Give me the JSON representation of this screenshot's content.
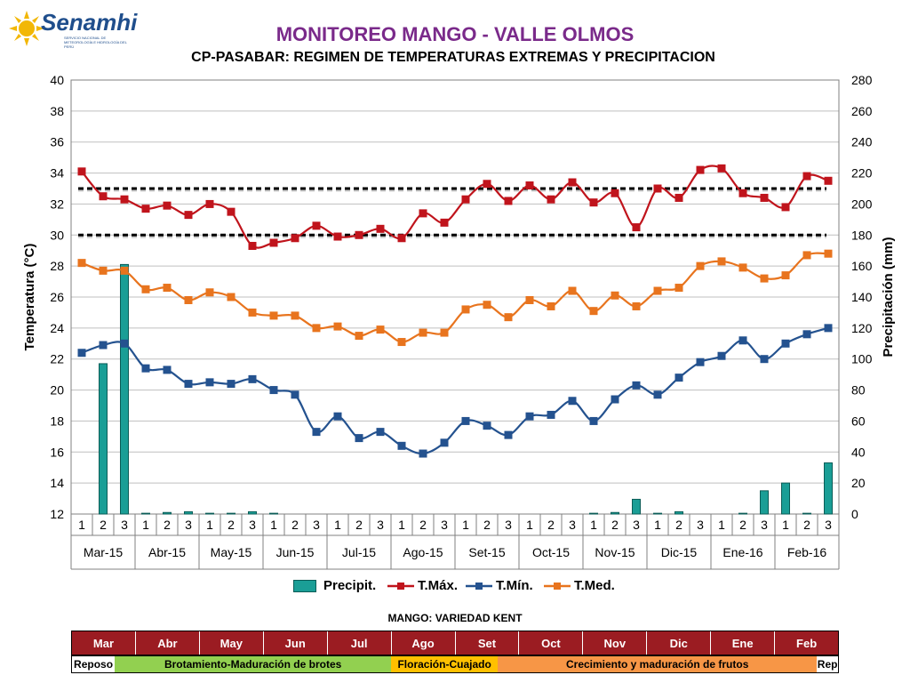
{
  "header": {
    "logo_text": "Senamhi",
    "logo_subtitle": "SERVICIO NACIONAL DE METEOROLOGÍA E HIDROLOGÍA DEL PERÚ",
    "title": "MONITOREO MANGO - VALLE OLMOS",
    "subtitle": "CP-PASABAR: REGIMEN DE TEMPERATURAS EXTREMAS Y PRECIPITACION"
  },
  "colors": {
    "tmax": "#c0141c",
    "tmin": "#24528f",
    "tmed": "#e8741e",
    "precip": "#1a9e96",
    "month_bar": "#9b1c22",
    "reposo": "#ffffff",
    "brotamiento": "#92d050",
    "floracion": "#ffc000",
    "crecimiento": "#f79646"
  },
  "chart_data": {
    "type": "line",
    "ylabel": "Temperatura (°C)",
    "y2label": "Precipitación (mm)",
    "ylim": [
      12,
      40
    ],
    "y2lim": [
      0,
      280
    ],
    "yticks": [
      12,
      14,
      16,
      18,
      20,
      22,
      24,
      26,
      28,
      30,
      32,
      34,
      36,
      38,
      40
    ],
    "y2ticks": [
      0,
      20,
      40,
      60,
      80,
      100,
      120,
      140,
      160,
      180,
      200,
      220,
      240,
      260,
      280
    ],
    "grid": true,
    "legend_position": "bottom",
    "x_decades": [
      "1",
      "2",
      "3",
      "1",
      "2",
      "3",
      "1",
      "2",
      "3",
      "1",
      "2",
      "3",
      "1",
      "2",
      "3",
      "1",
      "2",
      "3",
      "1",
      "2",
      "3",
      "1",
      "2",
      "3",
      "1",
      "2",
      "3",
      "1",
      "2",
      "3",
      "1",
      "2",
      "3",
      "1",
      "2",
      "3"
    ],
    "x_months": [
      "Mar-15",
      "Abr-15",
      "May-15",
      "Jun-15",
      "Jul-15",
      "Ago-15",
      "Set-15",
      "Oct-15",
      "Nov-15",
      "Dic-15",
      "Ene-16",
      "Feb-16"
    ],
    "reference_lines": [
      33,
      30
    ],
    "series": [
      {
        "name": "Precipit.",
        "kind": "bar",
        "axis": "right",
        "values": [
          0,
          97,
          161,
          0.5,
          1,
          1.5,
          0.5,
          0.5,
          1.5,
          0.5,
          0,
          0,
          0,
          0,
          0,
          0,
          0,
          0,
          0,
          0,
          0,
          0,
          0,
          0,
          0.5,
          1,
          9.5,
          0.5,
          1.5,
          0,
          0,
          0.5,
          15,
          20,
          0.5,
          33
        ]
      },
      {
        "name": "T.Máx.",
        "kind": "line",
        "axis": "left",
        "values": [
          34.1,
          32.5,
          32.3,
          31.7,
          31.9,
          31.3,
          32.0,
          31.5,
          29.3,
          29.5,
          29.8,
          30.6,
          29.9,
          30.0,
          30.4,
          29.8,
          31.4,
          30.8,
          32.3,
          33.3,
          32.2,
          33.2,
          32.3,
          33.4,
          32.1,
          32.7,
          30.5,
          33.0,
          32.4,
          34.2,
          34.3,
          32.7,
          32.4,
          31.8,
          33.8,
          33.5
        ]
      },
      {
        "name": "T.Mín.",
        "kind": "line",
        "axis": "left",
        "values": [
          22.4,
          22.9,
          23.0,
          21.4,
          21.3,
          20.4,
          20.5,
          20.4,
          20.7,
          20.0,
          19.7,
          17.3,
          18.3,
          16.9,
          17.3,
          16.4,
          15.9,
          16.6,
          18.0,
          17.7,
          17.1,
          18.3,
          18.4,
          19.3,
          18.0,
          19.4,
          20.3,
          19.7,
          20.8,
          21.8,
          22.2,
          23.2,
          22.0,
          23.0,
          23.6,
          24.0
        ]
      },
      {
        "name": "T.Med.",
        "kind": "line",
        "axis": "left",
        "values": [
          28.2,
          27.7,
          27.7,
          26.5,
          26.6,
          25.8,
          26.3,
          26.0,
          25.0,
          24.8,
          24.8,
          24.0,
          24.1,
          23.5,
          23.9,
          23.1,
          23.7,
          23.7,
          25.2,
          25.5,
          24.7,
          25.8,
          25.4,
          26.4,
          25.1,
          26.1,
          25.4,
          26.4,
          26.6,
          28.0,
          28.3,
          27.9,
          27.2,
          27.4,
          28.7,
          28.8
        ]
      }
    ]
  },
  "phenology": {
    "title": "MANGO: VARIEDAD KENT",
    "months": [
      "Mar",
      "Abr",
      "May",
      "Jun",
      "Jul",
      "Ago",
      "Set",
      "Oct",
      "Nov",
      "Dic",
      "Ene",
      "Feb"
    ],
    "phases": [
      {
        "label": "Reposo",
        "color": "#ffffff",
        "span": 0.67
      },
      {
        "label": "Brotamiento-Maduración de brotes",
        "color": "#92d050",
        "span": 4.33
      },
      {
        "label": "Floración-Cuajado",
        "color": "#ffc000",
        "span": 1.67
      },
      {
        "label": "Crecimiento y maduración de frutos",
        "color": "#f79646",
        "span": 5.0
      },
      {
        "label": "Rep",
        "color": "#ffffff",
        "span": 0.33
      }
    ]
  }
}
